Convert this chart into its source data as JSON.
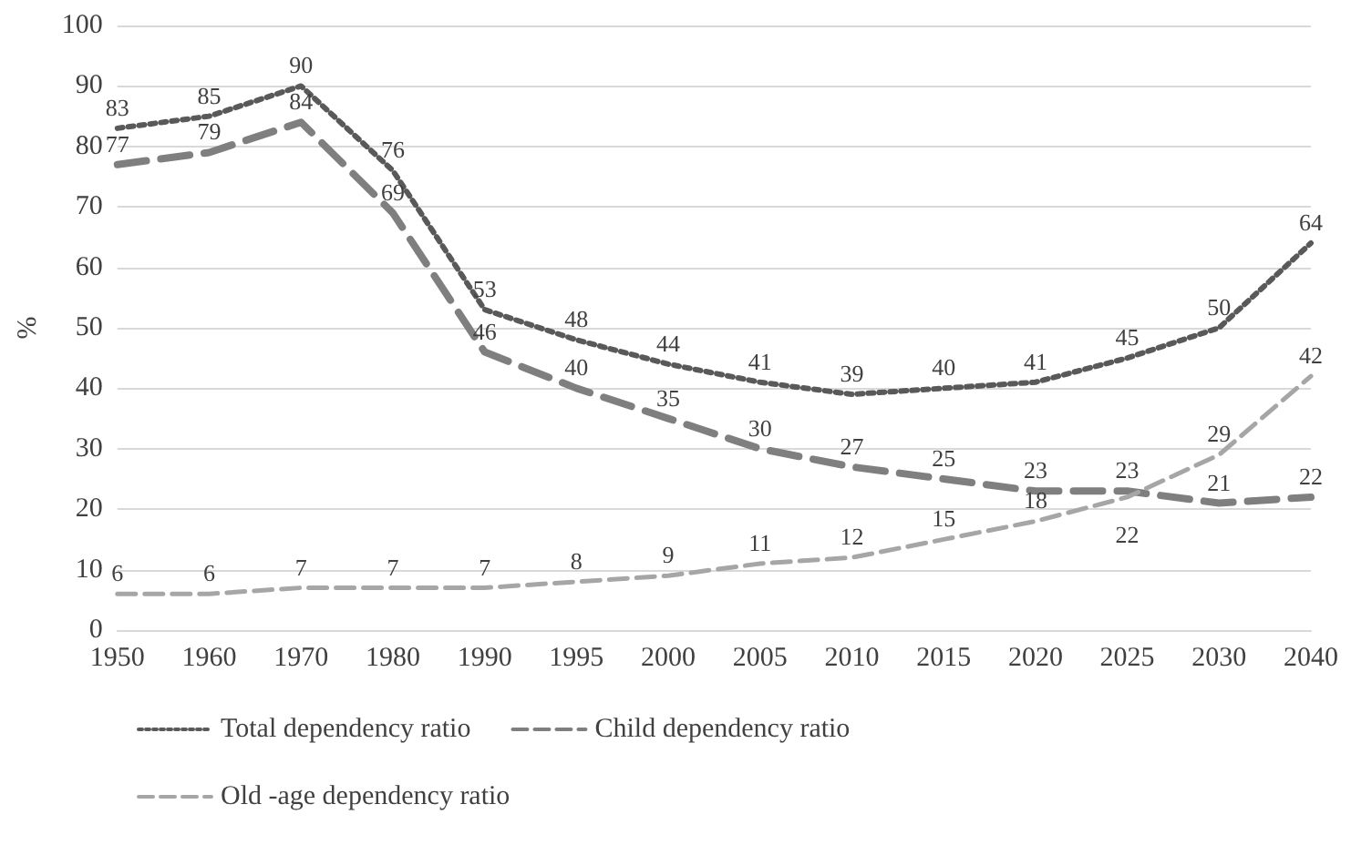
{
  "chart_data": {
    "type": "line",
    "ylabel": "%",
    "categories": [
      "1950",
      "1960",
      "1970",
      "1980",
      "1990",
      "1995",
      "2000",
      "2005",
      "2010",
      "2015",
      "2020",
      "2025",
      "2030",
      "2040"
    ],
    "series": [
      {
        "name": "Total dependency ratio",
        "color": "#595959",
        "line_style": "dotted",
        "values": [
          83,
          85,
          90,
          76,
          53,
          48,
          44,
          41,
          39,
          40,
          41,
          45,
          50,
          64
        ]
      },
      {
        "name": "Child dependency ratio",
        "color": "#7f7f7f",
        "line_style": "dashed",
        "values": [
          77,
          79,
          84,
          69,
          46,
          40,
          35,
          30,
          27,
          25,
          23,
          23,
          21,
          22
        ]
      },
      {
        "name": "Old -age dependency ratio",
        "color": "#a6a6a6",
        "line_style": "dashed",
        "values": [
          6,
          6,
          7,
          7,
          7,
          8,
          9,
          11,
          12,
          15,
          18,
          22,
          29,
          42
        ]
      }
    ],
    "ylim": [
      0,
      100
    ],
    "yticks": [
      0,
      10,
      20,
      30,
      40,
      50,
      60,
      70,
      80,
      90,
      100
    ],
    "grid": "y",
    "legend": "bottom",
    "marker": "none",
    "data_labels": true
  }
}
